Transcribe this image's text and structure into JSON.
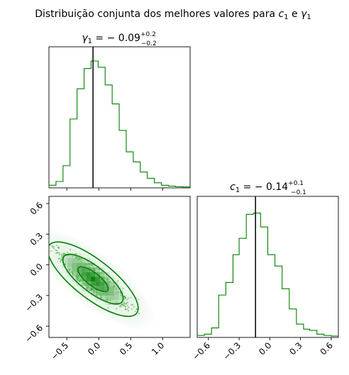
{
  "title_parts": {
    "lead": "Distribuição conjunta dos melhores valores para ",
    "c_sym": "c",
    "c_sub": "1",
    "mid": " e ",
    "g_sym": "γ",
    "g_sub": "1"
  },
  "colors": {
    "series": "#008000",
    "marker": "#000000"
  },
  "chart_data": [
    {
      "panel": "marginal-gamma1",
      "type": "histogram",
      "title": {
        "sym": "γ",
        "sub": "1",
        "eq": " = − 0.09",
        "sup": "+0.2",
        "inf": "−0.2"
      },
      "median": -0.09,
      "xlim": [
        -0.78,
        1.43
      ],
      "bin_edges": [
        -0.78,
        -0.67,
        -0.56,
        -0.45,
        -0.34,
        -0.23,
        -0.12,
        -0.01,
        0.1,
        0.21,
        0.32,
        0.43,
        0.54,
        0.65,
        0.76,
        0.87,
        0.98,
        1.09,
        1.2,
        1.31,
        1.43
      ],
      "counts": [
        0.015,
        0.045,
        0.17,
        0.54,
        0.78,
        0.94,
        1.0,
        0.95,
        0.81,
        0.66,
        0.45,
        0.28,
        0.2,
        0.12,
        0.07,
        0.035,
        0.015,
        0.008,
        0.004,
        0.002
      ],
      "tick_labels": [],
      "grid": false
    },
    {
      "panel": "joint-gamma1-c1",
      "type": "scatter+contour",
      "xlim": [
        -0.78,
        1.43
      ],
      "ylim": [
        -0.71,
        0.67
      ],
      "xticks": [
        -0.5,
        0.0,
        0.5,
        1.0
      ],
      "xtick_labels": [
        "−0.5",
        "0.0",
        "0.5",
        "1.0"
      ],
      "yticks": [
        -0.6,
        -0.3,
        0.0,
        0.3,
        0.6
      ],
      "ytick_labels": [
        "−0.6",
        "−0.3",
        "0.0",
        "0.3",
        "0.6"
      ],
      "center": {
        "x": -0.09,
        "y": -0.14
      },
      "correlation_direction": "negative",
      "contour_levels": 3,
      "grid": false
    },
    {
      "panel": "marginal-c1",
      "type": "histogram",
      "title": {
        "sym": "c",
        "sub": "1",
        "eq": " = − 0.14",
        "sup": "+0.1",
        "inf": "−0.1"
      },
      "median": -0.14,
      "xlim": [
        -0.71,
        0.67
      ],
      "bin_edges": [
        -0.71,
        -0.64,
        -0.57,
        -0.5,
        -0.43,
        -0.36,
        -0.3,
        -0.23,
        -0.16,
        -0.09,
        -0.02,
        0.05,
        0.12,
        0.19,
        0.26,
        0.33,
        0.39,
        0.46,
        0.53,
        0.6,
        0.67
      ],
      "counts": [
        0.01,
        0.02,
        0.07,
        0.33,
        0.43,
        0.65,
        0.78,
        0.97,
        0.98,
        0.87,
        0.65,
        0.56,
        0.38,
        0.22,
        0.1,
        0.06,
        0.05,
        0.02,
        0.01,
        0.005
      ],
      "xticks": [
        -0.6,
        -0.3,
        0.0,
        0.3,
        0.6
      ],
      "xtick_labels": [
        "−0.6",
        "−0.3",
        "0.0",
        "0.3",
        "0.6"
      ],
      "grid": false
    }
  ]
}
